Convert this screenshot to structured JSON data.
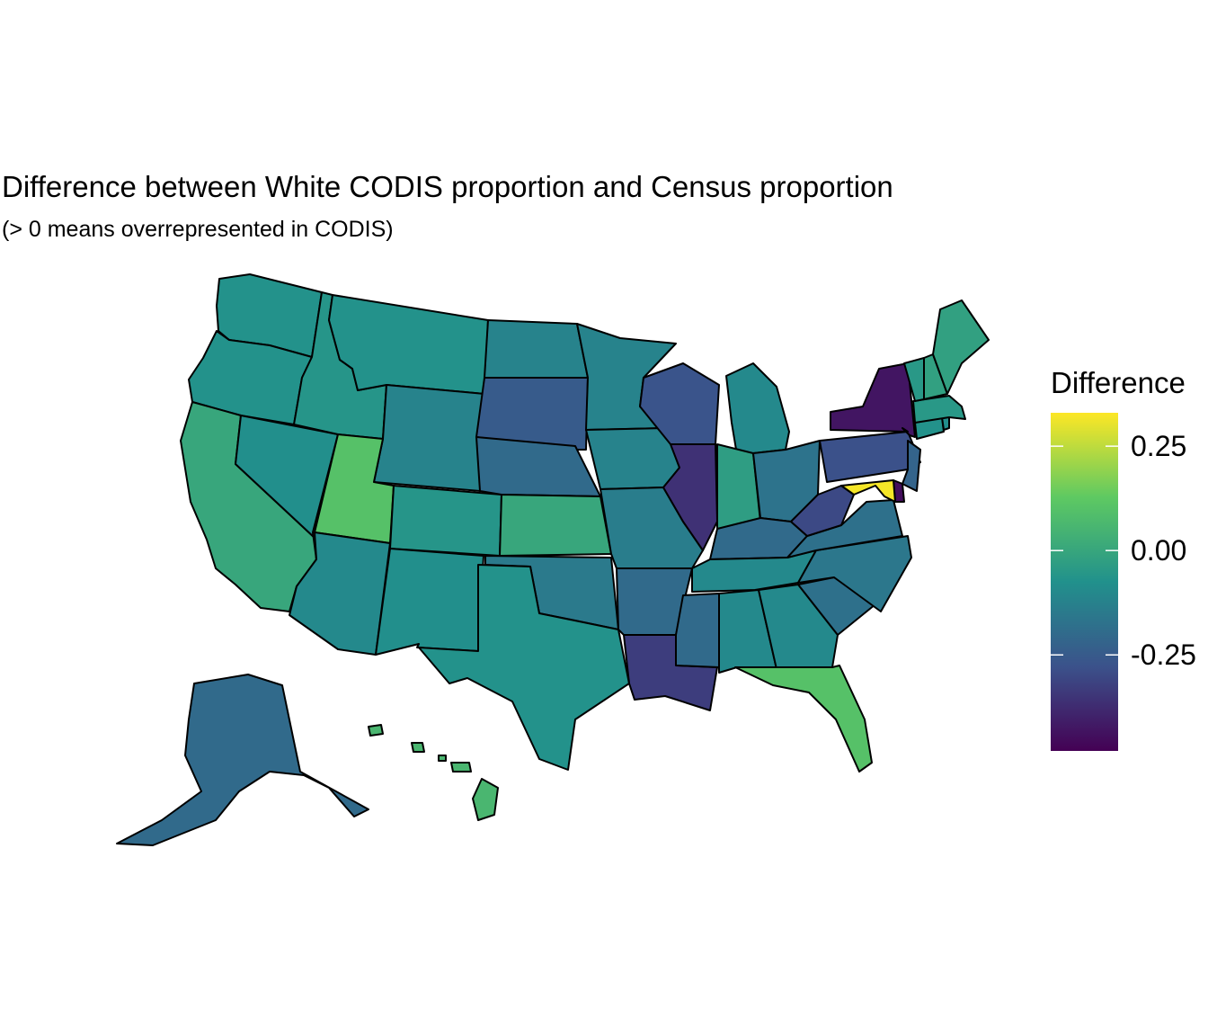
{
  "title": "Difference between White CODIS proportion and Census proportion",
  "subtitle": "(> 0 means overrepresented in CODIS)",
  "legend": {
    "title": "Difference",
    "ticks": [
      {
        "value": 0.25,
        "label": "0.25"
      },
      {
        "value": 0.0,
        "label": "0.00"
      },
      {
        "value": -0.25,
        "label": "-0.25"
      }
    ],
    "range": [
      -0.48,
      0.33
    ],
    "palette": "viridis",
    "colors": [
      "#440154",
      "#3b528b",
      "#21918c",
      "#5ec962",
      "#fde725"
    ]
  },
  "states": [
    {
      "name": "Washington",
      "value": -0.07
    },
    {
      "name": "Oregon",
      "value": -0.07
    },
    {
      "name": "California",
      "value": 0.0
    },
    {
      "name": "Nevada",
      "value": -0.08
    },
    {
      "name": "Idaho",
      "value": -0.06
    },
    {
      "name": "Montana",
      "value": -0.07
    },
    {
      "name": "Wyoming",
      "value": -0.12
    },
    {
      "name": "Utah",
      "value": 0.1
    },
    {
      "name": "Arizona",
      "value": -0.1
    },
    {
      "name": "Colorado",
      "value": -0.06
    },
    {
      "name": "New Mexico",
      "value": -0.08
    },
    {
      "name": "North Dakota",
      "value": -0.12
    },
    {
      "name": "South Dakota",
      "value": -0.25
    },
    {
      "name": "Nebraska",
      "value": -0.2
    },
    {
      "name": "Kansas",
      "value": 0.0
    },
    {
      "name": "Oklahoma",
      "value": -0.15
    },
    {
      "name": "Texas",
      "value": -0.07
    },
    {
      "name": "Minnesota",
      "value": -0.12
    },
    {
      "name": "Iowa",
      "value": -0.12
    },
    {
      "name": "Missouri",
      "value": -0.14
    },
    {
      "name": "Arkansas",
      "value": -0.2
    },
    {
      "name": "Louisiana",
      "value": -0.33
    },
    {
      "name": "Wisconsin",
      "value": -0.27
    },
    {
      "name": "Illinois",
      "value": -0.36
    },
    {
      "name": "Michigan",
      "value": -0.1
    },
    {
      "name": "Indiana",
      "value": -0.03
    },
    {
      "name": "Ohio",
      "value": -0.17
    },
    {
      "name": "Kentucky",
      "value": -0.2
    },
    {
      "name": "Tennessee",
      "value": -0.1
    },
    {
      "name": "Mississippi",
      "value": -0.2
    },
    {
      "name": "Alabama",
      "value": -0.1
    },
    {
      "name": "Georgia",
      "value": -0.1
    },
    {
      "name": "Florida",
      "value": 0.1
    },
    {
      "name": "South Carolina",
      "value": -0.18
    },
    {
      "name": "North Carolina",
      "value": -0.16
    },
    {
      "name": "Virginia",
      "value": -0.18
    },
    {
      "name": "West Virginia",
      "value": -0.3
    },
    {
      "name": "Pennsylvania",
      "value": -0.28
    },
    {
      "name": "New York",
      "value": -0.43
    },
    {
      "name": "New Jersey",
      "value": -0.22
    },
    {
      "name": "Delaware",
      "value": -0.45
    },
    {
      "name": "Maryland",
      "value": 0.32
    },
    {
      "name": "Connecticut",
      "value": -0.07
    },
    {
      "name": "Rhode Island",
      "value": -0.08
    },
    {
      "name": "Massachusetts",
      "value": -0.05
    },
    {
      "name": "Vermont",
      "value": -0.05
    },
    {
      "name": "New Hampshire",
      "value": -0.02
    },
    {
      "name": "Maine",
      "value": -0.02
    },
    {
      "name": "Alaska",
      "value": -0.2
    },
    {
      "name": "Hawaii",
      "value": 0.06
    }
  ]
}
